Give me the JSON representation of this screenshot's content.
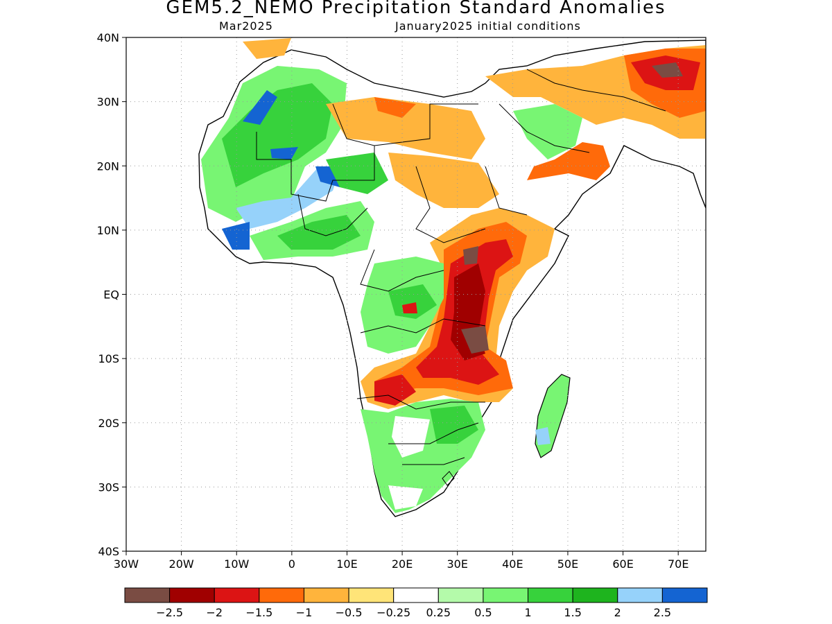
{
  "header": {
    "title": "GEM5.2_NEMO Precipitation Standard Anomalies",
    "subtitle_left": "Mar2025",
    "subtitle_right": "January2025 initial conditions"
  },
  "map": {
    "lat_range": [
      -40,
      40
    ],
    "lon_range": [
      -30,
      75
    ],
    "gridlines": "dotted",
    "lat_labels": [
      "40N",
      "30N",
      "20N",
      "10N",
      "EQ",
      "10S",
      "20S",
      "30S",
      "40S"
    ],
    "lon_labels": [
      "30W",
      "20W",
      "10W",
      "0",
      "10E",
      "20E",
      "30E",
      "40E",
      "50E",
      "60E",
      "70E"
    ]
  },
  "colorbar": {
    "colors": [
      "#7a4c43",
      "#a00000",
      "#dc1414",
      "#ff6a0a",
      "#ffb43c",
      "#ffe478",
      "#ffffff",
      "#b4faaa",
      "#78f573",
      "#37d23c",
      "#1eb41e",
      "#96d2fa",
      "#1464d2"
    ],
    "labels": [
      "−2.5",
      "−2",
      "−1.5",
      "−1",
      "−0.5",
      "−0.25",
      "0.25",
      "0.5",
      "1",
      "1.5",
      "2",
      "2.5"
    ]
  }
}
